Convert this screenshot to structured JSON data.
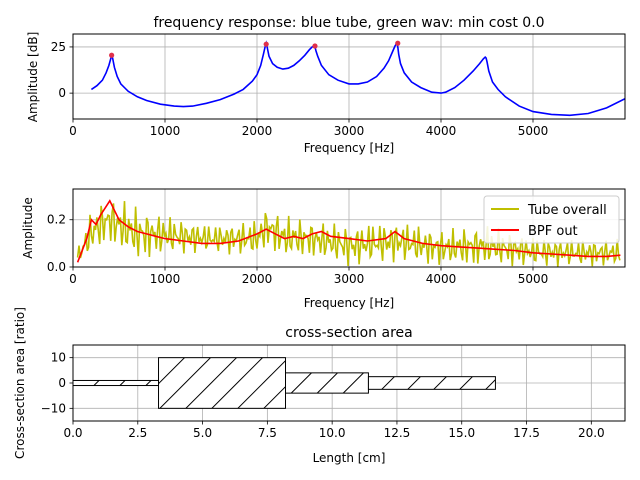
{
  "chart_data": [
    {
      "type": "line",
      "title": "frequency response: blue tube, green wav: min cost 0.0",
      "xlabel": "Frequency [Hz]",
      "ylabel": "Amplitude [dB]",
      "xlim": [
        0,
        6000
      ],
      "ylim": [
        -14,
        32
      ],
      "xticks": [
        0,
        1000,
        2000,
        3000,
        4000,
        5000
      ],
      "xtick_labels": [
        "0",
        "1000",
        "2000",
        "3000",
        "4000",
        "5000"
      ],
      "yticks": [
        0,
        25
      ],
      "ytick_labels": [
        "0",
        "25"
      ],
      "grid": true,
      "series": [
        {
          "color": "#0000ff",
          "x": [
            200,
            260,
            320,
            360,
            390,
            410,
            420,
            430,
            450,
            480,
            520,
            600,
            700,
            800,
            950,
            1100,
            1200,
            1300,
            1450,
            1600,
            1750,
            1850,
            1950,
            2000,
            2040,
            2070,
            2090,
            2100,
            2110,
            2130,
            2170,
            2220,
            2280,
            2340,
            2400,
            2460,
            2520,
            2570,
            2600,
            2620,
            2630,
            2640,
            2660,
            2700,
            2780,
            2880,
            3000,
            3100,
            3200,
            3300,
            3380,
            3430,
            3470,
            3500,
            3520,
            3530,
            3540,
            3560,
            3600,
            3680,
            3780,
            3900,
            4000,
            4050,
            4150,
            4250,
            4350,
            4420,
            4460,
            4480,
            4490,
            4500,
            4520,
            4560,
            4620,
            4700,
            4850,
            5000,
            5200,
            5400,
            5600,
            5800,
            6000
          ],
          "y": [
            2,
            4,
            7,
            11,
            15,
            18.5,
            20,
            19,
            14,
            9,
            5,
            1,
            -2,
            -4,
            -6,
            -7,
            -7.3,
            -7,
            -5.5,
            -3.5,
            -0.5,
            2,
            6.5,
            10,
            15,
            21,
            25.5,
            27,
            25,
            20,
            16,
            14,
            13,
            13.5,
            15,
            17.5,
            20.5,
            23.5,
            25,
            25.5,
            25,
            23,
            20,
            15,
            10,
            7,
            5,
            5,
            6,
            9,
            13.5,
            17.5,
            22,
            25.5,
            27,
            25,
            21,
            16,
            11,
            6,
            3,
            0.5,
            0,
            0.5,
            3,
            7,
            12,
            16,
            18.5,
            19.5,
            19,
            17,
            12,
            6,
            2,
            -2,
            -7,
            -10,
            -11.5,
            -12,
            -11,
            -8,
            -3
          ]
        }
      ],
      "markers": {
        "color": "#e0304a",
        "x": [
          420,
          2100,
          2630,
          3530
        ],
        "y": [
          20.5,
          26.5,
          25.5,
          27
        ]
      }
    },
    {
      "type": "line",
      "title": "",
      "xlabel": "Frequency [Hz]",
      "ylabel": "Amplitude",
      "xlim": [
        0,
        6000
      ],
      "ylim": [
        0,
        0.33
      ],
      "xticks": [
        0,
        1000,
        2000,
        3000,
        4000,
        5000
      ],
      "xtick_labels": [
        "0",
        "1000",
        "2000",
        "3000",
        "4000",
        "5000"
      ],
      "yticks": [
        0.0,
        0.2
      ],
      "ytick_labels": [
        "0.0",
        "0.2"
      ],
      "grid": true,
      "legend": "top-right",
      "series": [
        {
          "name": "Tube overall",
          "color": "#bfbf00",
          "envelope": {
            "x": [
              50,
              200,
              300,
              400,
              500,
              700,
              1000,
              1500,
              2000,
              2100,
              2300,
              2600,
              3000,
              3500,
              4000,
              4500,
              5000,
              5500,
              5950
            ],
            "high": [
              0.08,
              0.24,
              0.28,
              0.3,
              0.29,
              0.26,
              0.22,
              0.18,
              0.2,
              0.26,
              0.22,
              0.2,
              0.18,
              0.2,
              0.16,
              0.18,
              0.13,
              0.12,
              0.12
            ],
            "low": [
              0.0,
              0.05,
              0.08,
              0.1,
              0.06,
              0.02,
              0.05,
              0.06,
              0.04,
              0.08,
              0.03,
              0.04,
              0.0,
              0.02,
              0.0,
              0.0,
              0.0,
              0.0,
              0.0
            ]
          }
        },
        {
          "name": "BPF out",
          "color": "#ff0000",
          "x": [
            50,
            150,
            200,
            250,
            300,
            350,
            400,
            450,
            500,
            600,
            700,
            800,
            900,
            1000,
            1200,
            1400,
            1600,
            1800,
            2000,
            2100,
            2200,
            2300,
            2400,
            2500,
            2600,
            2700,
            2800,
            3000,
            3200,
            3400,
            3500,
            3600,
            3800,
            4000,
            4200,
            4400,
            4600,
            4800,
            5000,
            5200,
            5400,
            5600,
            5800,
            5950
          ],
          "y": [
            0.02,
            0.12,
            0.2,
            0.18,
            0.22,
            0.25,
            0.28,
            0.24,
            0.2,
            0.17,
            0.15,
            0.14,
            0.13,
            0.12,
            0.11,
            0.1,
            0.1,
            0.11,
            0.14,
            0.16,
            0.14,
            0.12,
            0.13,
            0.12,
            0.14,
            0.15,
            0.13,
            0.12,
            0.11,
            0.12,
            0.15,
            0.12,
            0.1,
            0.09,
            0.085,
            0.08,
            0.075,
            0.07,
            0.06,
            0.055,
            0.05,
            0.045,
            0.045,
            0.05
          ]
        }
      ]
    },
    {
      "type": "area",
      "title": "cross-section area",
      "xlabel": "Length [cm]",
      "ylabel": "Cross-section area [ratio]",
      "xlim": [
        0,
        21.3
      ],
      "ylim": [
        -15,
        15
      ],
      "xticks": [
        0,
        2.5,
        5,
        7.5,
        10,
        12.5,
        15,
        17.5,
        20
      ],
      "xtick_labels": [
        "0.0",
        "2.5",
        "5.0",
        "7.5",
        "10.0",
        "12.5",
        "15.0",
        "17.5",
        "20.0"
      ],
      "yticks": [
        -10,
        0,
        10
      ],
      "ytick_labels": [
        "−10",
        "0",
        "10"
      ],
      "grid": true,
      "sections": [
        {
          "x0": 0,
          "x1": 3.3,
          "area": 1
        },
        {
          "x0": 3.3,
          "x1": 8.2,
          "area": 10
        },
        {
          "x0": 8.2,
          "x1": 11.4,
          "area": 4
        },
        {
          "x0": 11.4,
          "x1": 16.3,
          "area": 2.5
        }
      ]
    }
  ]
}
